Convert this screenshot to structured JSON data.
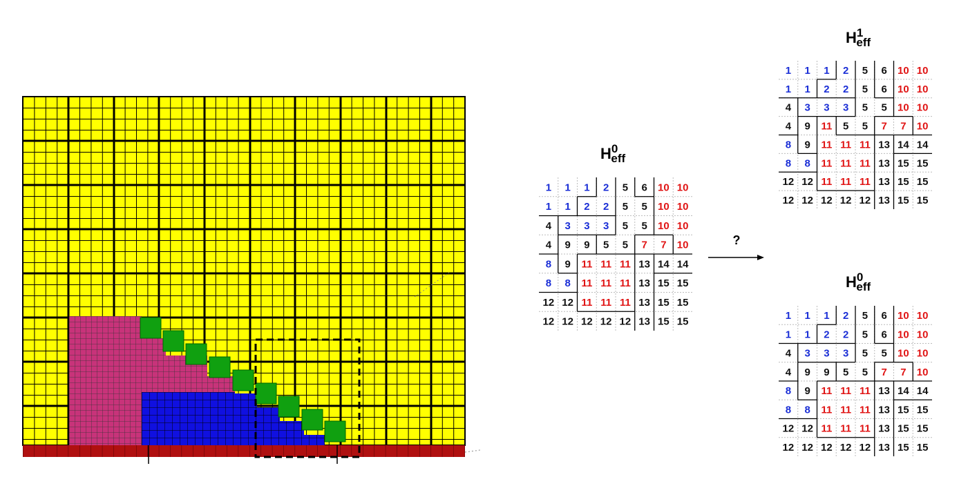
{
  "left_title": {
    "base": "H",
    "sup": "0",
    "sub": "eff"
  },
  "top_title": {
    "base": "H",
    "sup": "1",
    "sub": "eff"
  },
  "bottom_title": {
    "base": "H",
    "sup": "0",
    "sub": "eff"
  },
  "arrow_label": "?",
  "number_colors": {
    "#1a2ed6": [
      1,
      2,
      3,
      8
    ],
    "#e01414": [
      7,
      10,
      11
    ]
  },
  "left_grid": [
    [
      1,
      1,
      1,
      2,
      5,
      6,
      10,
      10
    ],
    [
      1,
      1,
      2,
      2,
      5,
      5,
      10,
      10
    ],
    [
      4,
      3,
      3,
      3,
      5,
      5,
      10,
      10
    ],
    [
      4,
      9,
      9,
      5,
      5,
      7,
      7,
      10
    ],
    [
      8,
      9,
      11,
      11,
      11,
      13,
      14,
      14
    ],
    [
      8,
      8,
      11,
      11,
      11,
      13,
      15,
      15
    ],
    [
      12,
      12,
      11,
      11,
      11,
      13,
      15,
      15
    ],
    [
      12,
      12,
      12,
      12,
      12,
      13,
      15,
      15
    ]
  ],
  "top_grid": [
    [
      1,
      1,
      1,
      2,
      5,
      6,
      10,
      10
    ],
    [
      1,
      1,
      2,
      2,
      5,
      6,
      10,
      10
    ],
    [
      4,
      3,
      3,
      3,
      5,
      5,
      10,
      10
    ],
    [
      4,
      9,
      11,
      5,
      5,
      7,
      7,
      10
    ],
    [
      8,
      9,
      11,
      11,
      11,
      13,
      14,
      14
    ],
    [
      8,
      8,
      11,
      11,
      11,
      13,
      15,
      15
    ],
    [
      12,
      12,
      11,
      11,
      11,
      13,
      15,
      15
    ],
    [
      12,
      12,
      12,
      12,
      12,
      13,
      15,
      15
    ]
  ],
  "bottom_grid": [
    [
      1,
      1,
      1,
      2,
      5,
      6,
      10,
      10
    ],
    [
      1,
      1,
      2,
      2,
      5,
      6,
      10,
      10
    ],
    [
      4,
      3,
      3,
      3,
      5,
      5,
      10,
      10
    ],
    [
      4,
      9,
      9,
      5,
      5,
      7,
      7,
      10
    ],
    [
      8,
      9,
      11,
      11,
      11,
      13,
      14,
      14
    ],
    [
      8,
      8,
      11,
      11,
      11,
      13,
      15,
      15
    ],
    [
      12,
      12,
      11,
      11,
      11,
      13,
      15,
      15
    ],
    [
      12,
      12,
      12,
      12,
      12,
      13,
      15,
      15
    ]
  ]
}
